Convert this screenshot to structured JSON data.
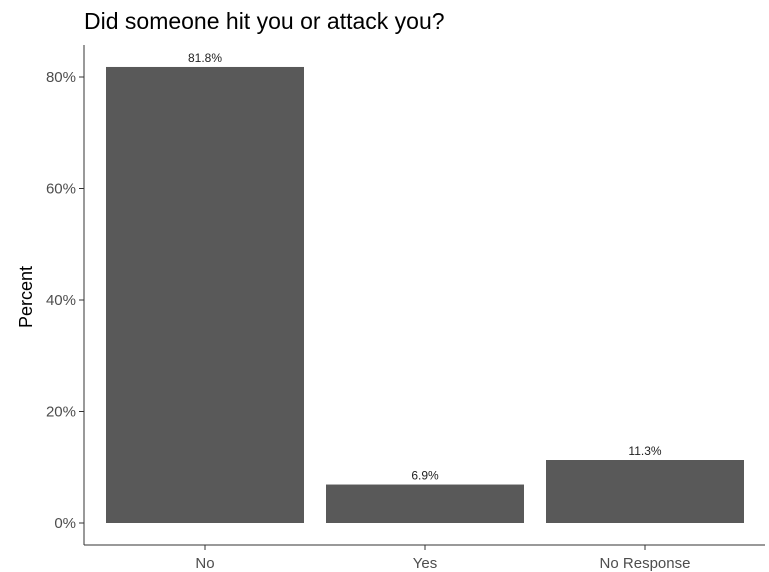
{
  "chart_data": {
    "type": "bar",
    "title": "Did someone hit you or attack you?",
    "xlabel": "",
    "ylabel": "Percent",
    "categories": [
      "No",
      "Yes",
      "No Response"
    ],
    "values": [
      81.8,
      6.9,
      11.3
    ],
    "data_labels": [
      "81.8%",
      "6.9%",
      "11.3%"
    ],
    "ylim": [
      0,
      85
    ],
    "yticks": [
      0,
      20,
      40,
      60,
      80
    ],
    "ytick_labels": [
      "0%",
      "20%",
      "40%",
      "60%",
      "80%"
    ],
    "grid": false,
    "legend": "none",
    "bar_color": "#595959"
  }
}
